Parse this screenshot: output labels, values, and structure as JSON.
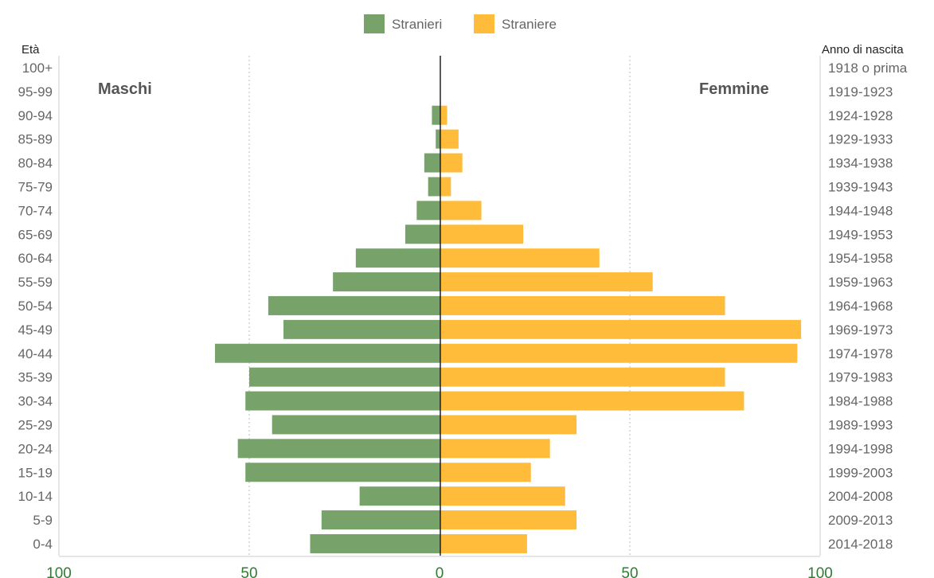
{
  "chart_data": {
    "type": "bar",
    "orientation": "horizontal",
    "layout": "population-pyramid",
    "y_axis_title_left": "Età",
    "y_axis_title_right": "Anno di nascita",
    "left_side_label": "Maschi",
    "right_side_label": "Femmine",
    "xlim": [
      -100,
      100
    ],
    "x_ticks": [
      -100,
      -50,
      0,
      50,
      100
    ],
    "x_tick_labels": [
      "100",
      "50",
      "0",
      "50",
      "100"
    ],
    "grid": true,
    "legend": "top-center",
    "categories": [
      "100+",
      "95-99",
      "90-94",
      "85-89",
      "80-84",
      "75-79",
      "70-74",
      "65-69",
      "60-64",
      "55-59",
      "50-54",
      "45-49",
      "40-44",
      "35-39",
      "30-34",
      "25-29",
      "20-24",
      "15-19",
      "10-14",
      "5-9",
      "0-4"
    ],
    "birth_years": [
      "1918 o prima",
      "1919-1923",
      "1924-1928",
      "1929-1933",
      "1934-1938",
      "1939-1943",
      "1944-1948",
      "1949-1953",
      "1954-1958",
      "1959-1963",
      "1964-1968",
      "1969-1973",
      "1974-1978",
      "1979-1983",
      "1984-1988",
      "1989-1993",
      "1994-1998",
      "1999-2003",
      "2004-2008",
      "2009-2013",
      "2014-2018"
    ],
    "series": [
      {
        "name": "Stranieri",
        "side": "left",
        "color": "#77a36b",
        "values": [
          0,
          0,
          2,
          1,
          4,
          3,
          6,
          9,
          22,
          28,
          45,
          41,
          59,
          50,
          51,
          44,
          53,
          51,
          21,
          31,
          34
        ]
      },
      {
        "name": "Straniere",
        "side": "right",
        "color": "#ffbb3a",
        "values": [
          0,
          0,
          2,
          5,
          6,
          3,
          11,
          22,
          42,
          56,
          75,
          95,
          94,
          75,
          80,
          36,
          29,
          24,
          33,
          36,
          23
        ]
      }
    ],
    "x_tick_color": "#2e7d32"
  }
}
